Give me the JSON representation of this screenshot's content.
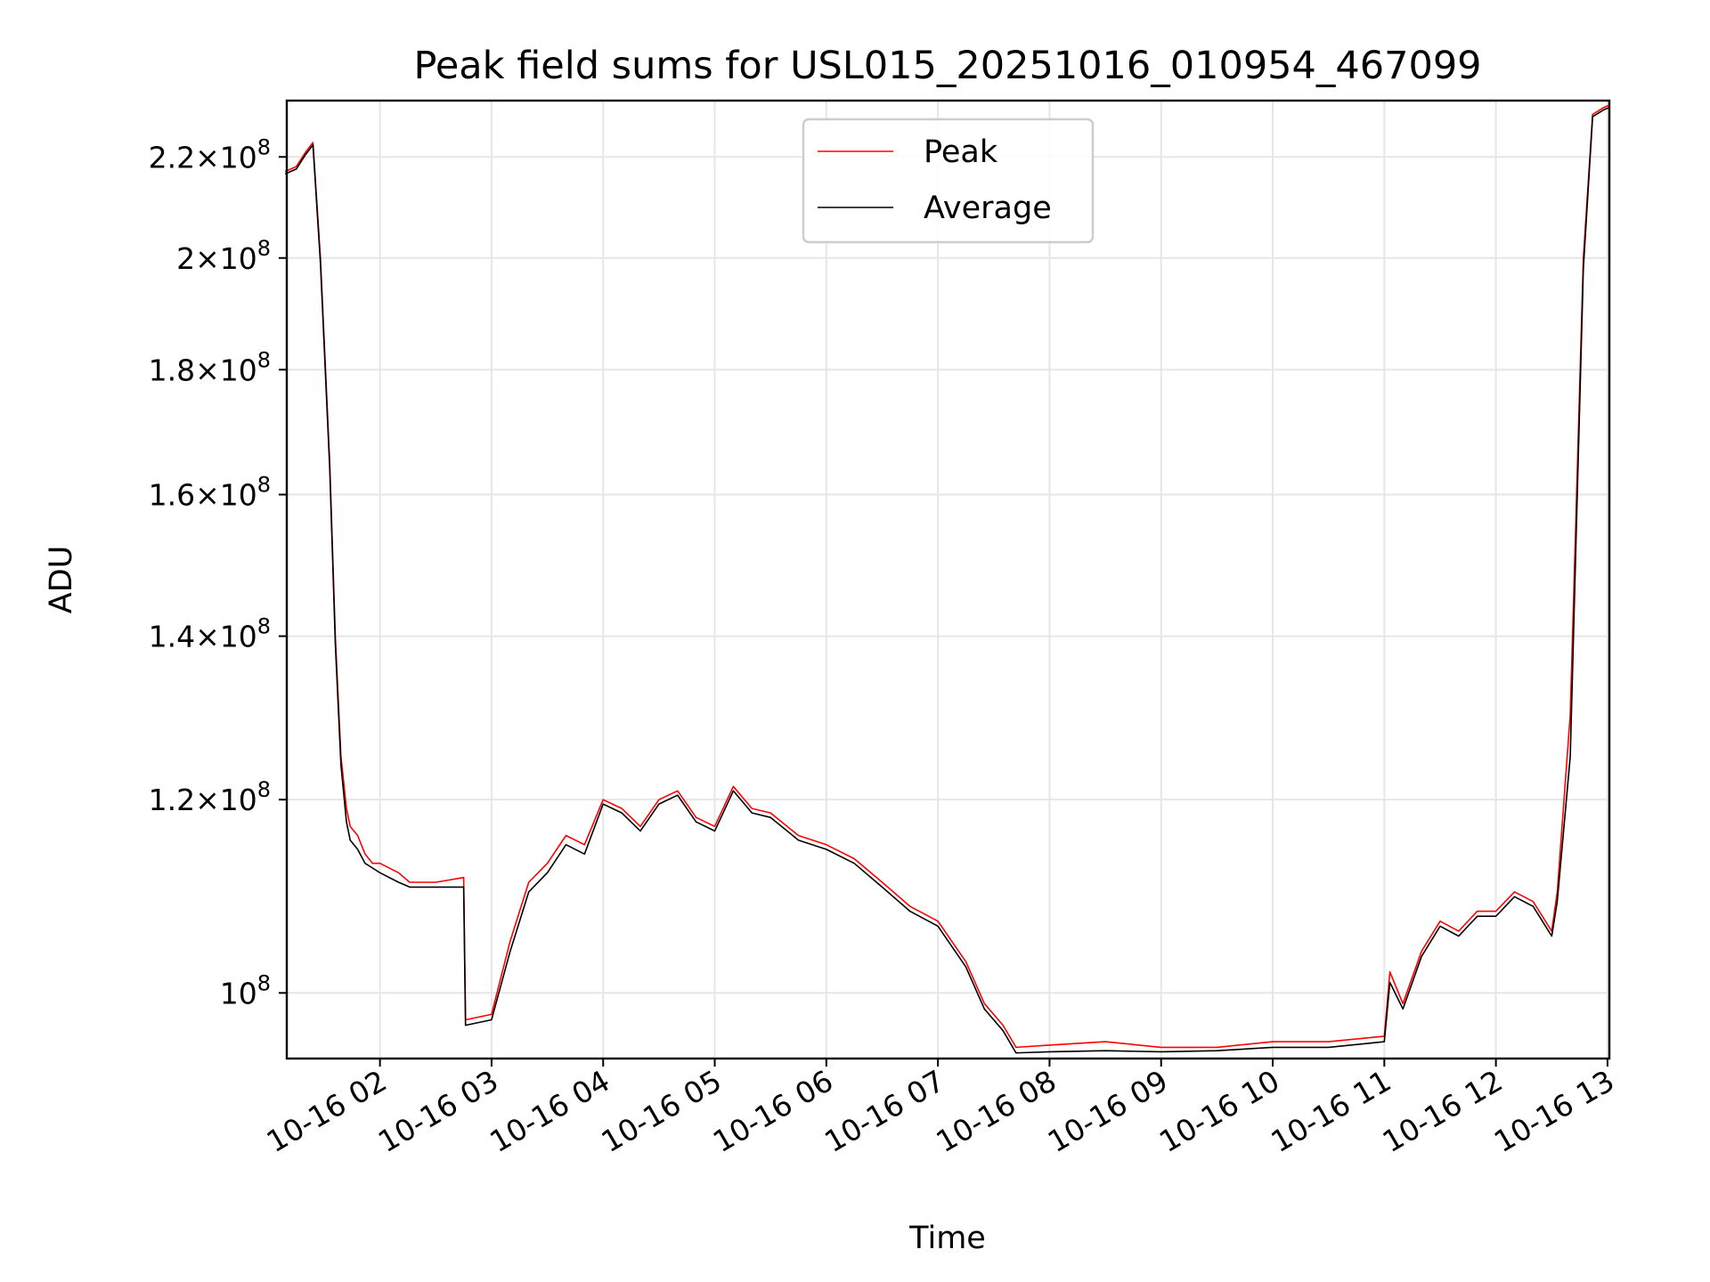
{
  "chart_data": {
    "type": "line",
    "title": "Peak field sums for USL015_20251016_010954_467099",
    "xlabel": "Time",
    "ylabel": "ADU",
    "yscale": "log",
    "xlim": [
      "2025-10-16 01:09:54",
      "2025-10-16 13:01:00"
    ],
    "ylim": [
      94000000,
      232000000
    ],
    "grid": true,
    "legend_position": "top-center",
    "x_ticks": [
      {
        "value": "2025-10-16 02:00",
        "label": "10-16 02"
      },
      {
        "value": "2025-10-16 03:00",
        "label": "10-16 03"
      },
      {
        "value": "2025-10-16 04:00",
        "label": "10-16 04"
      },
      {
        "value": "2025-10-16 05:00",
        "label": "10-16 05"
      },
      {
        "value": "2025-10-16 06:00",
        "label": "10-16 06"
      },
      {
        "value": "2025-10-16 07:00",
        "label": "10-16 07"
      },
      {
        "value": "2025-10-16 08:00",
        "label": "10-16 08"
      },
      {
        "value": "2025-10-16 09:00",
        "label": "10-16 09"
      },
      {
        "value": "2025-10-16 10:00",
        "label": "10-16 10"
      },
      {
        "value": "2025-10-16 11:00",
        "label": "10-16 11"
      },
      {
        "value": "2025-10-16 12:00",
        "label": "10-16 12"
      },
      {
        "value": "2025-10-16 13:00",
        "label": "10-16 13"
      }
    ],
    "y_ticks": [
      {
        "value": 100000000,
        "mantissa": "",
        "exponent": "8",
        "base": "10"
      },
      {
        "value": 120000000,
        "mantissa": "1.2",
        "exponent": "8",
        "base": "10"
      },
      {
        "value": 140000000,
        "mantissa": "1.4",
        "exponent": "8",
        "base": "10"
      },
      {
        "value": 160000000,
        "mantissa": "1.6",
        "exponent": "8",
        "base": "10"
      },
      {
        "value": 180000000,
        "mantissa": "1.8",
        "exponent": "8",
        "base": "10"
      },
      {
        "value": 200000000,
        "mantissa": "2",
        "exponent": "8",
        "base": "10"
      },
      {
        "value": 220000000,
        "mantissa": "2.2",
        "exponent": "8",
        "base": "10"
      }
    ],
    "series": [
      {
        "name": "Peak",
        "color": "#ff0000",
        "x": [
          "2025-10-16 01:09",
          "2025-10-16 01:15",
          "2025-10-16 01:20",
          "2025-10-16 01:24",
          "2025-10-16 01:28",
          "2025-10-16 01:33",
          "2025-10-16 01:36",
          "2025-10-16 01:39",
          "2025-10-16 01:42",
          "2025-10-16 01:44",
          "2025-10-16 01:48",
          "2025-10-16 01:52",
          "2025-10-16 01:56",
          "2025-10-16 02:00",
          "2025-10-16 02:10",
          "2025-10-16 02:16",
          "2025-10-16 02:30",
          "2025-10-16 02:45",
          "2025-10-16 02:46",
          "2025-10-16 03:00",
          "2025-10-16 03:10",
          "2025-10-16 03:20",
          "2025-10-16 03:30",
          "2025-10-16 03:40",
          "2025-10-16 03:50",
          "2025-10-16 04:00",
          "2025-10-16 04:10",
          "2025-10-16 04:20",
          "2025-10-16 04:30",
          "2025-10-16 04:40",
          "2025-10-16 04:50",
          "2025-10-16 05:00",
          "2025-10-16 05:10",
          "2025-10-16 05:20",
          "2025-10-16 05:30",
          "2025-10-16 05:45",
          "2025-10-16 06:00",
          "2025-10-16 06:15",
          "2025-10-16 06:30",
          "2025-10-16 06:45",
          "2025-10-16 07:00",
          "2025-10-16 07:15",
          "2025-10-16 07:25",
          "2025-10-16 07:35",
          "2025-10-16 07:42",
          "2025-10-16 08:00",
          "2025-10-16 08:30",
          "2025-10-16 09:00",
          "2025-10-16 09:30",
          "2025-10-16 10:00",
          "2025-10-16 10:30",
          "2025-10-16 11:00",
          "2025-10-16 11:03",
          "2025-10-16 11:10",
          "2025-10-16 11:20",
          "2025-10-16 11:30",
          "2025-10-16 11:40",
          "2025-10-16 11:50",
          "2025-10-16 12:00",
          "2025-10-16 12:10",
          "2025-10-16 12:20",
          "2025-10-16 12:30",
          "2025-10-16 12:33",
          "2025-10-16 12:40",
          "2025-10-16 12:47",
          "2025-10-16 12:52",
          "2025-10-16 12:58",
          "2025-10-16 13:01"
        ],
        "values": [
          217000000,
          218000000,
          221000000,
          223000000,
          200000000,
          165000000,
          140000000,
          125000000,
          119000000,
          117000000,
          116000000,
          114000000,
          113000000,
          113000000,
          112000000,
          111000000,
          111000000,
          111500000,
          97500000,
          98000000,
          105000000,
          111000000,
          113000000,
          116000000,
          115000000,
          120000000,
          119000000,
          117000000,
          120000000,
          121000000,
          118000000,
          117000000,
          121500000,
          119000000,
          118500000,
          116000000,
          115000000,
          113500000,
          111000000,
          108500000,
          107000000,
          103000000,
          99000000,
          97000000,
          95000000,
          95200000,
          95500000,
          95000000,
          95000000,
          95500000,
          95500000,
          96000000,
          102000000,
          99000000,
          104000000,
          107000000,
          106000000,
          108000000,
          108000000,
          110000000,
          109000000,
          106000000,
          110000000,
          130000000,
          200000000,
          229000000,
          230500000,
          231000000
        ]
      },
      {
        "name": "Average",
        "color": "#000000",
        "x": [
          "2025-10-16 01:09",
          "2025-10-16 01:15",
          "2025-10-16 01:20",
          "2025-10-16 01:24",
          "2025-10-16 01:28",
          "2025-10-16 01:33",
          "2025-10-16 01:36",
          "2025-10-16 01:39",
          "2025-10-16 01:42",
          "2025-10-16 01:44",
          "2025-10-16 01:48",
          "2025-10-16 01:52",
          "2025-10-16 01:56",
          "2025-10-16 02:00",
          "2025-10-16 02:10",
          "2025-10-16 02:16",
          "2025-10-16 02:30",
          "2025-10-16 02:45",
          "2025-10-16 02:46",
          "2025-10-16 03:00",
          "2025-10-16 03:10",
          "2025-10-16 03:20",
          "2025-10-16 03:30",
          "2025-10-16 03:40",
          "2025-10-16 03:50",
          "2025-10-16 04:00",
          "2025-10-16 04:10",
          "2025-10-16 04:20",
          "2025-10-16 04:30",
          "2025-10-16 04:40",
          "2025-10-16 04:50",
          "2025-10-16 05:00",
          "2025-10-16 05:10",
          "2025-10-16 05:20",
          "2025-10-16 05:30",
          "2025-10-16 05:45",
          "2025-10-16 06:00",
          "2025-10-16 06:15",
          "2025-10-16 06:30",
          "2025-10-16 06:45",
          "2025-10-16 07:00",
          "2025-10-16 07:15",
          "2025-10-16 07:25",
          "2025-10-16 07:35",
          "2025-10-16 07:42",
          "2025-10-16 08:00",
          "2025-10-16 08:30",
          "2025-10-16 09:00",
          "2025-10-16 09:30",
          "2025-10-16 10:00",
          "2025-10-16 10:30",
          "2025-10-16 11:00",
          "2025-10-16 11:03",
          "2025-10-16 11:10",
          "2025-10-16 11:20",
          "2025-10-16 11:30",
          "2025-10-16 11:40",
          "2025-10-16 11:50",
          "2025-10-16 12:00",
          "2025-10-16 12:10",
          "2025-10-16 12:20",
          "2025-10-16 12:30",
          "2025-10-16 12:33",
          "2025-10-16 12:40",
          "2025-10-16 12:47",
          "2025-10-16 12:52",
          "2025-10-16 12:58",
          "2025-10-16 13:01"
        ],
        "values": [
          216500000,
          217500000,
          220500000,
          222500000,
          199000000,
          164000000,
          139000000,
          124000000,
          117500000,
          115500000,
          114500000,
          113000000,
          112500000,
          112000000,
          111000000,
          110500000,
          110500000,
          110500000,
          97000000,
          97500000,
          104000000,
          110000000,
          112000000,
          115000000,
          114000000,
          119500000,
          118500000,
          116500000,
          119500000,
          120500000,
          117500000,
          116500000,
          121000000,
          118500000,
          118000000,
          115500000,
          114500000,
          113000000,
          110500000,
          108000000,
          106500000,
          102500000,
          98500000,
          96500000,
          94500000,
          94600000,
          94700000,
          94600000,
          94700000,
          95000000,
          95000000,
          95500000,
          101000000,
          98500000,
          103500000,
          106500000,
          105500000,
          107500000,
          107500000,
          109500000,
          108500000,
          105500000,
          109000000,
          125000000,
          198000000,
          228500000,
          230000000,
          230500000
        ]
      }
    ]
  }
}
